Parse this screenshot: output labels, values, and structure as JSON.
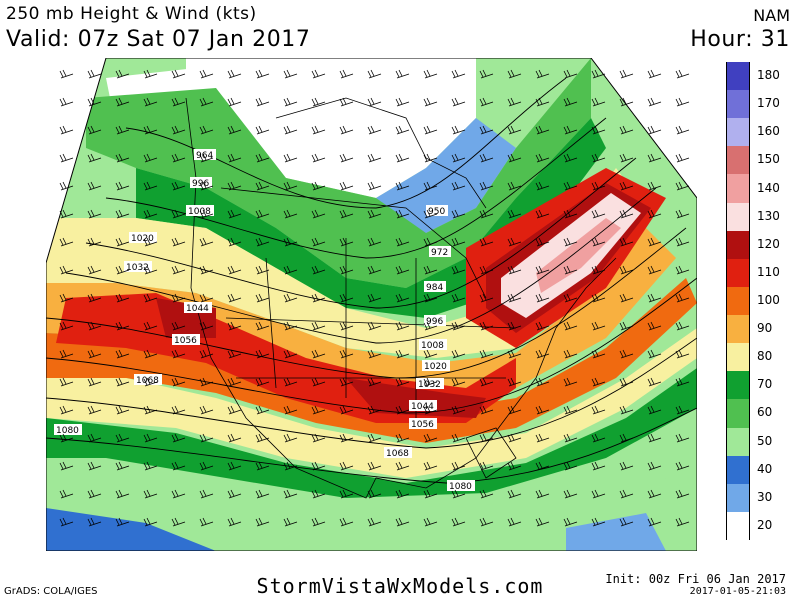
{
  "header": {
    "title": "250 mb Height & Wind (kts)",
    "valid": "Valid: 07z Sat 07 Jan 2017",
    "model": "NAM",
    "hour": "Hour: 31"
  },
  "footer": {
    "credit": "GrADS: COLA/IGES",
    "site": "StormVistaWxModels.com",
    "init": "Init: 00z Fri 06 Jan 2017",
    "stamp": "2017-01-05-21:03"
  },
  "colorbar": {
    "labels": [
      "180",
      "170",
      "160",
      "150",
      "140",
      "130",
      "120",
      "110",
      "100",
      "90",
      "80",
      "70",
      "60",
      "50",
      "40",
      "30",
      "20"
    ],
    "colors": [
      "#4040c0",
      "#7070d8",
      "#b0b0ee",
      "#d87070",
      "#f0a0a0",
      "#fae0e0",
      "#b01010",
      "#e02010",
      "#f06a10",
      "#f8b040",
      "#f8f0a0",
      "#10a030",
      "#50c050",
      "#a0e898",
      "#3070d0",
      "#70a8e8",
      "#ffffff"
    ]
  },
  "map": {
    "height_labels": [
      "964",
      "996",
      "1008",
      "1020",
      "1032",
      "1044",
      "1056",
      "1068",
      "1080",
      "950",
      "972",
      "984",
      "996",
      "1008",
      "1020",
      "1032",
      "1044",
      "1056",
      "1068",
      "1080"
    ]
  }
}
